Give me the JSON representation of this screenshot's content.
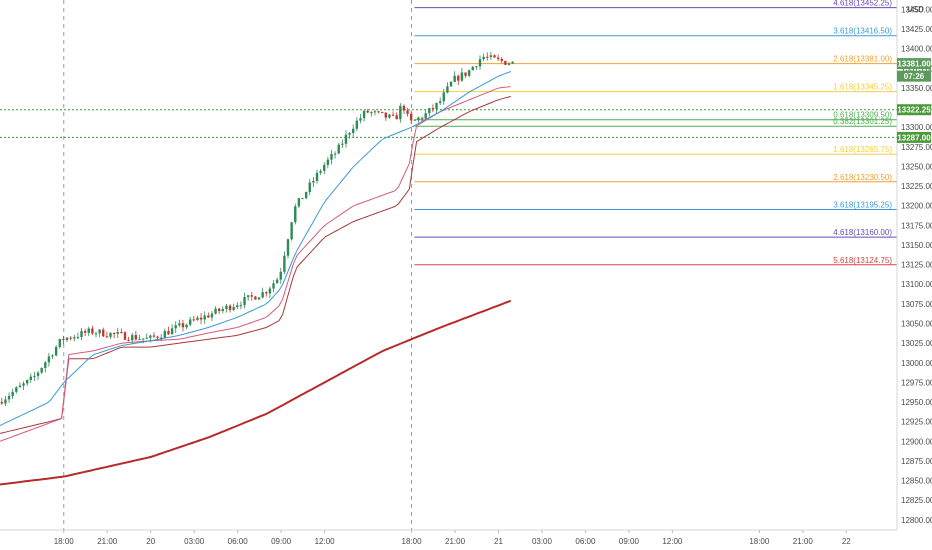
{
  "chart_data": {
    "type": "candlestick",
    "currency": "USD",
    "x_tick_labels": [
      "18:00",
      "21:00",
      "20",
      "03:00",
      "06:00",
      "09:00",
      "12:00",
      "18:00",
      "21:00",
      "21",
      "03:00",
      "06:00",
      "09:00",
      "12:00",
      "18:00",
      "21:00",
      "22"
    ],
    "x_ticks_hours": [
      0,
      3,
      6,
      9,
      12,
      15,
      18,
      24,
      27,
      30,
      33,
      36,
      39,
      42,
      48,
      51,
      54
    ],
    "x_range_hours": [
      -4.4,
      57.5
    ],
    "session_markers_hours": [
      0,
      24
    ],
    "y_tick_labels": [
      "13450.00",
      "13425.00",
      "13400.00",
      "13375.00",
      "13350.00",
      "13325.00",
      "13300.00",
      "13275.00",
      "13250.00",
      "13225.00",
      "13200.00",
      "13175.00",
      "13150.00",
      "13125.00",
      "13100.00",
      "13075.00",
      "13050.00",
      "13025.00",
      "13000.00",
      "12975.00",
      "12950.00",
      "12925.00",
      "12900.00",
      "12875.00",
      "12850.00",
      "12825.00",
      "12800.00"
    ],
    "ylim": [
      12787,
      13462
    ],
    "fib_levels": [
      {
        "label": "4.618(13452.25)",
        "value": 13452.25,
        "color": "#6a4bb5"
      },
      {
        "label": "3.618(13416.50)",
        "value": 13416.5,
        "color": "#3a9ad9"
      },
      {
        "label": "2.618(13381.00)",
        "value": 13381.0,
        "color": "#f0a030"
      },
      {
        "label": "1.618(13345.25)",
        "value": 13345.25,
        "color": "#f0d040"
      },
      {
        "label": "0.618(13309.50)",
        "value": 13309.5,
        "color": "#4caf50"
      },
      {
        "label": "0.382(13301.25)",
        "value": 13301.25,
        "color": "#4caf50"
      },
      {
        "label": "1.618(13265.75)",
        "value": 13265.75,
        "color": "#f0d040"
      },
      {
        "label": "2.618(13230.50)",
        "value": 13230.5,
        "color": "#f0a030"
      },
      {
        "label": "3.618(13195.25)",
        "value": 13195.25,
        "color": "#3a9ad9"
      },
      {
        "label": "4.618(13160.00)",
        "value": 13160.0,
        "color": "#6a4bb5"
      },
      {
        "label": "5.618(13124.75)",
        "value": 13124.75,
        "color": "#e04040"
      }
    ],
    "fib_start_hours": 24.2,
    "range_lines": [
      13322.25,
      13287.0
    ],
    "price_tags": [
      {
        "label": "13381.00",
        "value": 13381.0,
        "color": "#5a9a5a"
      },
      {
        "label": "07:26",
        "value": 13365.0,
        "color": "#5a9a5a"
      },
      {
        "label": "13322.25",
        "value": 13322.25,
        "color": "#4a9a3a"
      },
      {
        "label": "13287.00",
        "value": 13287.0,
        "color": "#4a9a3a"
      }
    ],
    "anchors": {
      "close": [
        [
          -4.4,
          12950
        ],
        [
          -2,
          12980
        ],
        [
          0,
          13030
        ],
        [
          2,
          13040
        ],
        [
          4,
          13035
        ],
        [
          6,
          13030
        ],
        [
          8,
          13045
        ],
        [
          10,
          13060
        ],
        [
          12,
          13075
        ],
        [
          14,
          13090
        ],
        [
          15,
          13110
        ],
        [
          16,
          13195
        ],
        [
          18,
          13250
        ],
        [
          19,
          13270
        ],
        [
          20,
          13300
        ],
        [
          21,
          13320
        ],
        [
          22,
          13315
        ],
        [
          23,
          13310
        ],
        [
          23.5,
          13330
        ],
        [
          24,
          13305
        ],
        [
          25,
          13315
        ],
        [
          26,
          13330
        ],
        [
          27,
          13360
        ],
        [
          28,
          13370
        ],
        [
          29,
          13390
        ],
        [
          30,
          13385
        ],
        [
          31,
          13382
        ]
      ],
      "sma_fast": [
        [
          -4.4,
          12920
        ],
        [
          -1,
          12950
        ],
        [
          0,
          12975
        ],
        [
          2,
          13010
        ],
        [
          4,
          13022
        ],
        [
          6,
          13028
        ],
        [
          8,
          13035
        ],
        [
          10,
          13045
        ],
        [
          12,
          13058
        ],
        [
          14,
          13075
        ],
        [
          15,
          13095
        ],
        [
          16,
          13140
        ],
        [
          18,
          13205
        ],
        [
          20,
          13250
        ],
        [
          22,
          13285
        ],
        [
          24,
          13300
        ],
        [
          26,
          13320
        ],
        [
          28,
          13345
        ],
        [
          30,
          13365
        ],
        [
          31,
          13372
        ]
      ],
      "sma_slow": [
        [
          -4.4,
          12900
        ],
        [
          0,
          12930
        ],
        [
          0.2,
          13010
        ],
        [
          2,
          13015
        ],
        [
          4,
          13025
        ],
        [
          6,
          13028
        ],
        [
          8,
          13030
        ],
        [
          10,
          13038
        ],
        [
          12,
          13045
        ],
        [
          14,
          13058
        ],
        [
          15,
          13075
        ],
        [
          16,
          13135
        ],
        [
          18,
          13175
        ],
        [
          20,
          13200
        ],
        [
          23,
          13220
        ],
        [
          24,
          13260
        ],
        [
          24.2,
          13300
        ],
        [
          26,
          13320
        ],
        [
          28,
          13335
        ],
        [
          30,
          13350
        ],
        [
          31,
          13352
        ]
      ],
      "lower_band": [
        [
          -4.4,
          12910
        ],
        [
          -1,
          12925
        ],
        [
          0,
          12930
        ],
        [
          0.2,
          13005
        ],
        [
          2,
          13005
        ],
        [
          4,
          13020
        ],
        [
          6,
          13020
        ],
        [
          8,
          13025
        ],
        [
          10,
          13030
        ],
        [
          12,
          13035
        ],
        [
          14,
          13045
        ],
        [
          15,
          13055
        ],
        [
          16,
          13120
        ],
        [
          18,
          13160
        ],
        [
          20,
          13180
        ],
        [
          23,
          13200
        ],
        [
          24,
          13225
        ],
        [
          24.2,
          13280
        ],
        [
          26,
          13300
        ],
        [
          28,
          13320
        ],
        [
          30,
          13335
        ],
        [
          31,
          13340
        ]
      ],
      "ma_long": [
        [
          -4.4,
          12845
        ],
        [
          0,
          12855
        ],
        [
          6,
          12880
        ],
        [
          10,
          12905
        ],
        [
          14,
          12935
        ],
        [
          18,
          12975
        ],
        [
          22,
          13015
        ],
        [
          26,
          13045
        ],
        [
          31,
          13080
        ]
      ]
    }
  }
}
